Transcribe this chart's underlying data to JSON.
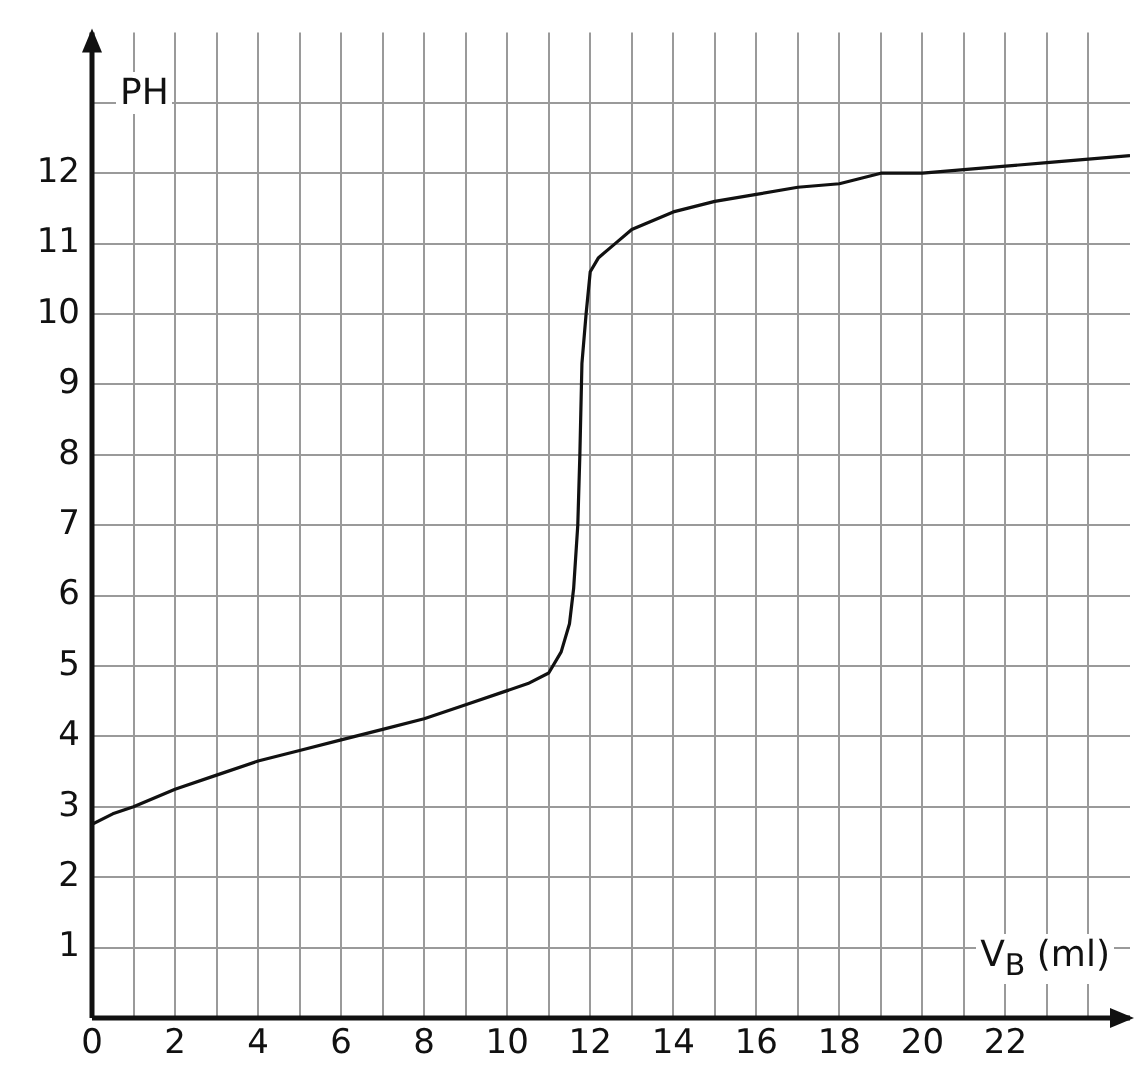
{
  "chart_data": {
    "type": "line",
    "xlabel": "V$_{B}$ (ml)",
    "ylabel": "PH",
    "x": [
      0,
      0.5,
      1,
      2,
      3,
      4,
      5,
      6,
      7,
      8,
      9,
      10,
      10.5,
      11,
      11.3,
      11.5,
      11.6,
      11.7,
      11.75,
      11.8,
      11.9,
      12.0,
      12.2,
      12.6,
      13,
      14,
      15,
      16,
      17,
      18,
      19,
      20,
      21,
      22,
      23,
      24,
      25
    ],
    "series": [
      {
        "color": "#111111",
        "values": [
          2.75,
          2.9,
          3.0,
          3.25,
          3.45,
          3.65,
          3.8,
          3.95,
          4.1,
          4.25,
          4.45,
          4.65,
          4.75,
          4.9,
          5.2,
          5.6,
          6.1,
          7.0,
          8.0,
          9.3,
          10.0,
          10.6,
          10.8,
          11.0,
          11.2,
          11.45,
          11.6,
          11.7,
          11.8,
          11.85,
          12.0,
          12.0,
          12.05,
          12.1,
          12.15,
          12.2,
          12.25
        ]
      }
    ],
    "xlim": [
      0,
      25
    ],
    "ylim": [
      0,
      14
    ],
    "xticks": [
      0,
      {
        "value": 1,
        "label": null
      },
      2,
      {
        "value": 3,
        "label": null
      },
      4,
      {
        "value": 5,
        "label": null
      },
      6,
      {
        "value": 7,
        "label": null
      },
      8,
      {
        "value": 9,
        "label": null
      },
      10,
      {
        "value": 11,
        "label": null
      },
      12,
      {
        "value": 13,
        "label": null
      },
      14,
      {
        "value": 15,
        "label": null
      },
      16,
      {
        "value": 17,
        "label": null
      },
      18,
      {
        "value": 19,
        "label": null
      },
      20,
      {
        "value": 21,
        "label": null
      },
      22,
      {
        "value": 23,
        "label": null
      },
      {
        "value": 24,
        "label": null
      }
    ],
    "yticks": [
      1,
      2,
      3,
      4,
      5,
      6,
      7,
      8,
      9,
      10,
      11,
      12,
      {
        "value": 13,
        "label": null
      }
    ],
    "grid": true,
    "legend": false,
    "marker": "none",
    "line_style": "solid"
  }
}
